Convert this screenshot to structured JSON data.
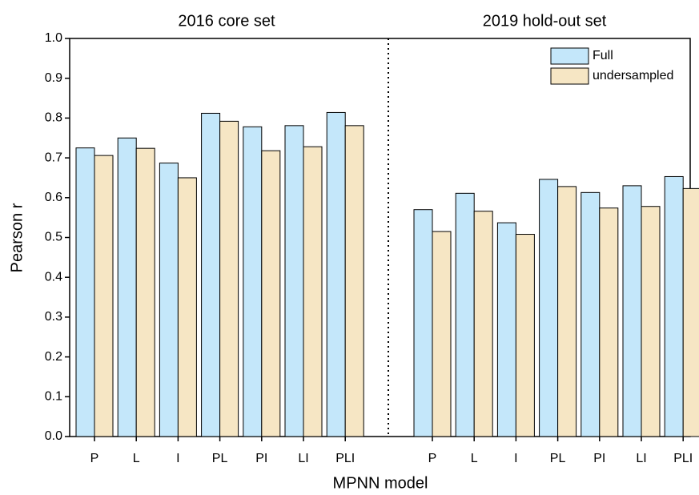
{
  "chart_data": [
    {
      "type": "bar",
      "title": "2016 core set",
      "y_label": "Pearson r",
      "x_label": "MPNN model",
      "categories": [
        "P",
        "L",
        "I",
        "PL",
        "PI",
        "LI",
        "PLI"
      ],
      "series": [
        {
          "name": "Full",
          "color": "#c4e7fa",
          "values": [
            0.725,
            0.75,
            0.687,
            0.812,
            0.778,
            0.781,
            0.814
          ]
        },
        {
          "name": "undersampled",
          "color": "#f6e6c4",
          "values": [
            0.706,
            0.724,
            0.65,
            0.792,
            0.718,
            0.728,
            0.781
          ]
        }
      ],
      "ylim": [
        0,
        1
      ],
      "yticks": [
        {
          "value": 0,
          "label": "0.0"
        },
        {
          "value": 0.1,
          "label": "0.1"
        },
        {
          "value": 0.2,
          "label": "0.2"
        },
        {
          "value": 0.3,
          "label": "0.3"
        },
        {
          "value": 0.4,
          "label": "0.4"
        },
        {
          "value": 0.5,
          "label": "0.5"
        },
        {
          "value": 0.6,
          "label": "0.6"
        },
        {
          "value": 0.7,
          "label": "0.7"
        },
        {
          "value": 0.8,
          "label": "0.8"
        },
        {
          "value": 0.9,
          "label": "0.9"
        },
        {
          "value": 1,
          "label": "1.0"
        }
      ]
    },
    {
      "type": "bar",
      "title": "2019 hold-out set",
      "categories": [
        "P",
        "L",
        "I",
        "PL",
        "PI",
        "LI",
        "PLI"
      ],
      "series": [
        {
          "name": "Full",
          "color": "#c4e7fa",
          "values": [
            0.57,
            0.611,
            0.537,
            0.646,
            0.613,
            0.63,
            0.653
          ]
        },
        {
          "name": "undersampled",
          "color": "#f6e6c4",
          "values": [
            0.515,
            0.566,
            0.508,
            0.628,
            0.574,
            0.578,
            0.623
          ]
        }
      ],
      "ylim": [
        0,
        1
      ],
      "legend": "upper right"
    }
  ]
}
